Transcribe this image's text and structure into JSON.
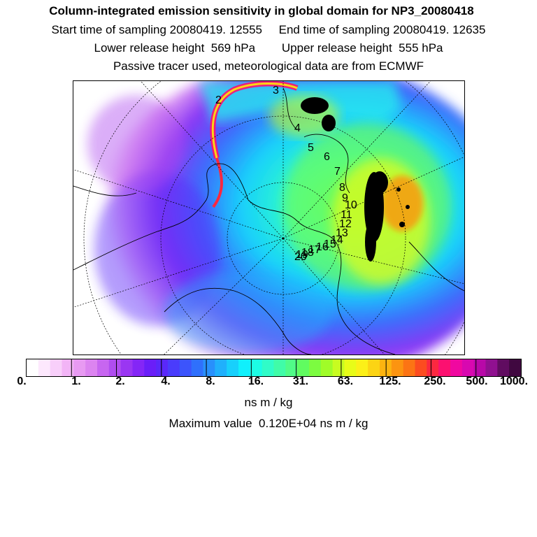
{
  "header": {
    "title": "Column-integrated emission sensitivity in global domain for NP3_20080418",
    "line1": "Start time of sampling 20080419. 12555     End time of sampling 20080419. 12635",
    "line2": "Lower release height  569 hPa        Upper release height  555 hPa",
    "line3": "Passive tracer used, meteorological data are from ECMWF"
  },
  "map": {
    "projection": "north-polar stereographic",
    "trajectory_labels": [
      "2",
      "3",
      "4",
      "5",
      "6",
      "7",
      "8",
      "9",
      "10",
      "11",
      "12",
      "13",
      "14",
      "15",
      "16",
      "17",
      "18",
      "19",
      "20"
    ]
  },
  "colorbar": {
    "colors": [
      "#ffffff",
      "#fde8fd",
      "#f8cffa",
      "#f2b4f6",
      "#e89af2",
      "#dc84f0",
      "#c766f0",
      "#b04df0",
      "#9a36f2",
      "#8426f6",
      "#6a1ef8",
      "#5a28fa",
      "#4a3cfc",
      "#3c54fc",
      "#2f70fc",
      "#2890fc",
      "#20b0fc",
      "#18d0fc",
      "#10f0fc",
      "#1cfce4",
      "#30fcc8",
      "#40fca8",
      "#50fc88",
      "#60fc60",
      "#7cfc40",
      "#a0fc28",
      "#c8fc20",
      "#e8fc18",
      "#fcf018",
      "#fcd414",
      "#fcb410",
      "#fc9410",
      "#fc7414",
      "#fc4c20",
      "#fc2840",
      "#fc1070",
      "#f008a0",
      "#d808b0",
      "#b808a8",
      "#901090",
      "#600c60",
      "#400840"
    ],
    "tick_labels": [
      "0.",
      "1.",
      "2.",
      "4.",
      "8.",
      "16.",
      "31.",
      "63.",
      "125.",
      "250.",
      "500.",
      "1000."
    ],
    "units": "ns m / kg"
  },
  "max_value_text": "Maximum value  0.120E+04 ns m / kg"
}
